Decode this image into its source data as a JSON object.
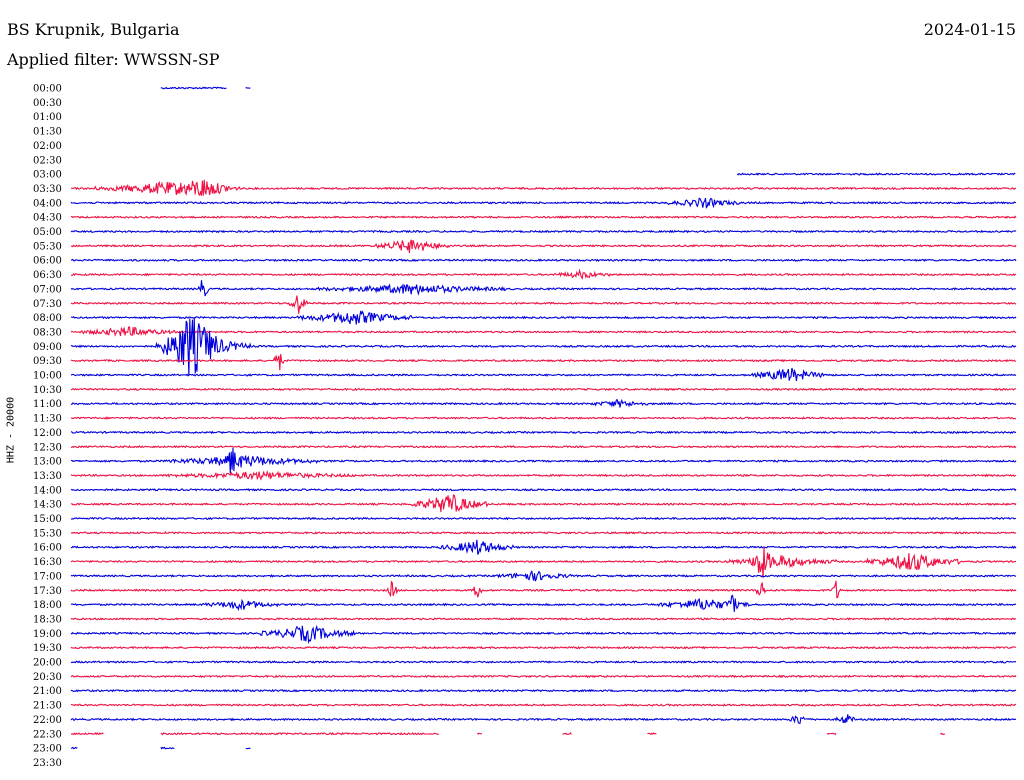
{
  "header": {
    "station": "BS Krupnik, Bulgaria",
    "date": "2024-01-15",
    "filter_label": "Applied filter: WWSSN-SP"
  },
  "colors": {
    "blue": "#0000dd",
    "red": "#ee1144"
  },
  "chart_data": {
    "type": "line",
    "ylabel": "HHZ - 20000",
    "row_times": [
      "00:00",
      "00:30",
      "01:00",
      "01:30",
      "02:00",
      "02:30",
      "03:00",
      "03:30",
      "04:00",
      "04:30",
      "05:00",
      "05:30",
      "06:00",
      "06:30",
      "07:00",
      "07:30",
      "08:00",
      "08:30",
      "09:00",
      "09:30",
      "10:00",
      "10:30",
      "11:00",
      "11:30",
      "12:00",
      "12:30",
      "13:00",
      "13:30",
      "14:00",
      "14:30",
      "15:00",
      "15:30",
      "16:00",
      "16:30",
      "17:00",
      "17:30",
      "18:00",
      "18:30",
      "19:00",
      "19:30",
      "20:00",
      "20:30",
      "21:00",
      "21:30",
      "22:00",
      "22:30",
      "23:00",
      "23:30"
    ],
    "row_colors": [
      "blue",
      "red",
      "blue",
      "red",
      "blue",
      "red",
      "blue",
      "red",
      "blue",
      "red",
      "blue",
      "red",
      "blue",
      "red",
      "blue",
      "red",
      "blue",
      "red",
      "blue",
      "red",
      "blue",
      "red",
      "blue",
      "red",
      "blue",
      "red",
      "blue",
      "red",
      "blue",
      "red",
      "blue",
      "red",
      "blue",
      "red",
      "blue",
      "red",
      "blue",
      "red",
      "blue",
      "red",
      "blue",
      "red",
      "blue",
      "red",
      "blue",
      "red",
      "blue",
      "red"
    ],
    "events": [
      {
        "row": 7,
        "at": 0.1,
        "width": 0.08,
        "amp": 5
      },
      {
        "row": 7,
        "at": 0.14,
        "width": 0.03,
        "amp": 7
      },
      {
        "row": 8,
        "at": 0.67,
        "width": 0.04,
        "amp": 4
      },
      {
        "row": 11,
        "at": 0.36,
        "width": 0.04,
        "amp": 6
      },
      {
        "row": 13,
        "at": 0.54,
        "width": 0.03,
        "amp": 3
      },
      {
        "row": 14,
        "at": 0.14,
        "width": 0.005,
        "amp": 14
      },
      {
        "row": 14,
        "at": 0.36,
        "width": 0.1,
        "amp": 4
      },
      {
        "row": 15,
        "at": 0.24,
        "width": 0.01,
        "amp": 10
      },
      {
        "row": 16,
        "at": 0.3,
        "width": 0.06,
        "amp": 6
      },
      {
        "row": 17,
        "at": 0.06,
        "width": 0.05,
        "amp": 4
      },
      {
        "row": 18,
        "at": 0.125,
        "width": 0.03,
        "amp": 22
      },
      {
        "row": 18,
        "at": 0.14,
        "width": 0.05,
        "amp": 10
      },
      {
        "row": 19,
        "at": 0.22,
        "width": 0.005,
        "amp": 12
      },
      {
        "row": 20,
        "at": 0.76,
        "width": 0.04,
        "amp": 6
      },
      {
        "row": 22,
        "at": 0.58,
        "width": 0.03,
        "amp": 3
      },
      {
        "row": 26,
        "at": 0.18,
        "width": 0.08,
        "amp": 5
      },
      {
        "row": 26,
        "at": 0.17,
        "width": 0.005,
        "amp": 14
      },
      {
        "row": 27,
        "at": 0.2,
        "width": 0.1,
        "amp": 3
      },
      {
        "row": 29,
        "at": 0.4,
        "width": 0.04,
        "amp": 9
      },
      {
        "row": 32,
        "at": 0.43,
        "width": 0.04,
        "amp": 6
      },
      {
        "row": 33,
        "at": 0.73,
        "width": 0.01,
        "amp": 16
      },
      {
        "row": 33,
        "at": 0.75,
        "width": 0.06,
        "amp": 5
      },
      {
        "row": 33,
        "at": 0.89,
        "width": 0.05,
        "amp": 8
      },
      {
        "row": 34,
        "at": 0.49,
        "width": 0.04,
        "amp": 4
      },
      {
        "row": 35,
        "at": 0.34,
        "width": 0.005,
        "amp": 10
      },
      {
        "row": 35,
        "at": 0.43,
        "width": 0.005,
        "amp": 10
      },
      {
        "row": 35,
        "at": 0.73,
        "width": 0.005,
        "amp": 12
      },
      {
        "row": 35,
        "at": 0.81,
        "width": 0.005,
        "amp": 10
      },
      {
        "row": 36,
        "at": 0.18,
        "width": 0.04,
        "amp": 4
      },
      {
        "row": 36,
        "at": 0.67,
        "width": 0.05,
        "amp": 5
      },
      {
        "row": 36,
        "at": 0.7,
        "width": 0.005,
        "amp": 10
      },
      {
        "row": 38,
        "at": 0.25,
        "width": 0.05,
        "amp": 7
      },
      {
        "row": 44,
        "at": 0.77,
        "width": 0.01,
        "amp": 5
      },
      {
        "row": 44,
        "at": 0.82,
        "width": 0.01,
        "amp": 5
      }
    ],
    "segments": [
      {
        "row": 0,
        "from": 0.095,
        "to": 0.165
      },
      {
        "row": 0,
        "from": 0.185,
        "to": 0.19
      },
      {
        "row": 6,
        "from": 0.705,
        "to": 1.0
      },
      {
        "row": 45,
        "from": 0.0,
        "to": 0.035
      },
      {
        "row": 45,
        "from": 0.095,
        "to": 0.39
      },
      {
        "row": 45,
        "from": 0.43,
        "to": 0.435
      },
      {
        "row": 45,
        "from": 0.52,
        "to": 0.53
      },
      {
        "row": 45,
        "from": 0.61,
        "to": 0.62
      },
      {
        "row": 45,
        "from": 0.8,
        "to": 0.81
      },
      {
        "row": 45,
        "from": 0.92,
        "to": 0.925
      },
      {
        "row": 46,
        "from": 0.0,
        "to": 0.007
      },
      {
        "row": 46,
        "from": 0.095,
        "to": 0.11
      },
      {
        "row": 46,
        "from": 0.185,
        "to": 0.19
      }
    ]
  }
}
